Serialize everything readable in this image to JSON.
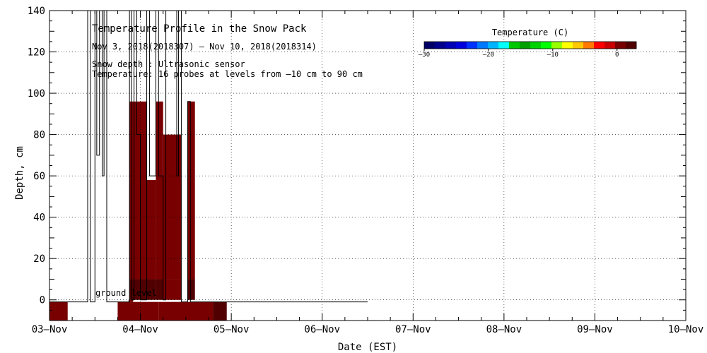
{
  "chart_data": {
    "type": "heatmap",
    "title": "Temperature Profile in the Snow Pack",
    "subtitle": "Nov  3, 2018(2018307) – Nov 10, 2018(2018314)",
    "notes": [
      "Snow depth : Ultrasonic sensor",
      "Temperature: 16 probes at levels from –10 cm to 90 cm"
    ],
    "xlabel": "Date (EST)",
    "ylabel": "Depth, cm",
    "xlim": [
      0,
      7
    ],
    "ylim": [
      -10,
      140
    ],
    "x_tick_labels": [
      "03–Nov",
      "04–Nov",
      "05–Nov",
      "06–Nov",
      "07–Nov",
      "08–Nov",
      "09–Nov",
      "10–Nov"
    ],
    "y_ticks": [
      0,
      20,
      40,
      60,
      80,
      100,
      120,
      140
    ],
    "grid": true,
    "ground_level_label": "ground level",
    "colorbar": {
      "title": "Temperature (C)",
      "range": [
        -30,
        3
      ],
      "tick_values": [
        -30,
        -20,
        -10,
        0
      ],
      "tick_labels": [
        "–30",
        "–20",
        "–10",
        "0"
      ],
      "colors": [
        "#000066",
        "#00008c",
        "#0000b4",
        "#0000dc",
        "#0032ff",
        "#0078ff",
        "#00b4ff",
        "#00ffff",
        "#00c800",
        "#00a000",
        "#00d200",
        "#00ff00",
        "#96ff00",
        "#ffff00",
        "#ffc800",
        "#ff7800",
        "#ff0000",
        "#c80000",
        "#780000",
        "#500000"
      ]
    },
    "cells": [
      {
        "x0": 0.0,
        "x1": 0.2,
        "y0": -10,
        "y1": -1,
        "temp": 1.0
      },
      {
        "x0": 0.75,
        "x1": 1.2,
        "y0": -10,
        "y1": -1,
        "temp": 1.0
      },
      {
        "x0": 1.2,
        "x1": 1.8,
        "y0": -10,
        "y1": -1,
        "temp": 1.0
      },
      {
        "x0": 1.8,
        "x1": 1.95,
        "y0": -10,
        "y1": -1,
        "temp": 2.0
      },
      {
        "x0": 0.87,
        "x1": 0.92,
        "y0": -1,
        "y1": 0,
        "temp": 1.0
      },
      {
        "x0": 0.88,
        "x1": 1.07,
        "y0": 0,
        "y1": 10,
        "temp": 2.5
      },
      {
        "x0": 1.07,
        "x1": 1.17,
        "y0": 0,
        "y1": 10,
        "temp": 2.0
      },
      {
        "x0": 1.17,
        "x1": 1.25,
        "y0": 0,
        "y1": 10,
        "temp": 2.5
      },
      {
        "x0": 1.25,
        "x1": 1.45,
        "y0": 0,
        "y1": 10,
        "temp": 1.0
      },
      {
        "x0": 1.52,
        "x1": 1.6,
        "y0": 0,
        "y1": 10,
        "temp": 2.5
      },
      {
        "x0": 0.88,
        "x1": 1.07,
        "y0": 10,
        "y1": 96,
        "temp": 1.0
      },
      {
        "x0": 1.07,
        "x1": 1.17,
        "y0": 10,
        "y1": 58,
        "temp": 1.0
      },
      {
        "x0": 1.17,
        "x1": 1.25,
        "y0": 10,
        "y1": 96,
        "temp": 1.0
      },
      {
        "x0": 1.25,
        "x1": 1.45,
        "y0": 10,
        "y1": 80,
        "temp": 1.0
      },
      {
        "x0": 1.52,
        "x1": 1.6,
        "y0": 10,
        "y1": 96,
        "temp": 1.0
      }
    ],
    "snow_depth_line": {
      "x": [
        0.0,
        0.42,
        0.42,
        0.45,
        0.45,
        0.5,
        0.5,
        0.52,
        0.52,
        0.55,
        0.55,
        0.58,
        0.58,
        0.6,
        0.6,
        0.63,
        0.63,
        0.88,
        0.88,
        0.9,
        0.9,
        0.93,
        0.93,
        0.96,
        0.96,
        1.0,
        1.0,
        1.07,
        1.07,
        1.1,
        1.1,
        1.17,
        1.17,
        1.2,
        1.2,
        1.25,
        1.25,
        1.28,
        1.28,
        1.4,
        1.4,
        1.42,
        1.42,
        1.45,
        1.45,
        1.52,
        1.52,
        1.55,
        1.55,
        3.5
      ],
      "y": [
        -1,
        -1,
        140,
        140,
        -1,
        -1,
        140,
        140,
        70,
        70,
        140,
        140,
        60,
        60,
        140,
        140,
        -1,
        -1,
        140,
        140,
        0,
        0,
        140,
        140,
        80,
        80,
        0,
        0,
        140,
        140,
        60,
        60,
        140,
        140,
        60,
        60,
        0,
        0,
        140,
        140,
        60,
        60,
        140,
        140,
        -1,
        -1,
        96,
        96,
        -1,
        -1
      ]
    }
  }
}
